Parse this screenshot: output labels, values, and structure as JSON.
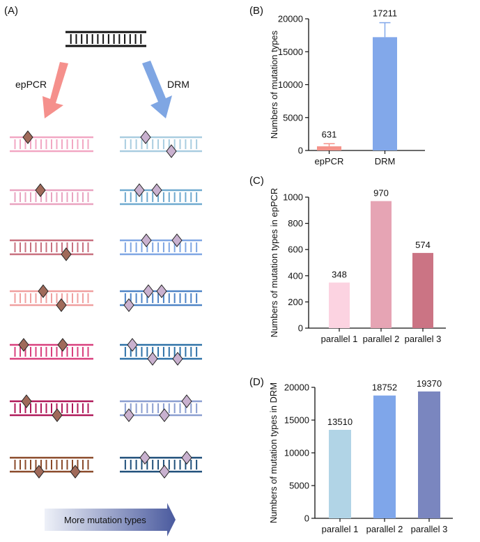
{
  "panels": {
    "a": "(A)",
    "b": "(B)",
    "c": "(C)",
    "d": "(D)"
  },
  "schematic": {
    "left_method": "epPCR",
    "right_method": "DRM",
    "bottom_arrow_text": "More mutation types",
    "colors": {
      "left_arrow": "#f5908c",
      "right_arrow": "#7fa6e3",
      "mutation_marker_left": "#a06a5a",
      "mutation_marker_right": "#c9b1cf",
      "left_dna": [
        "#f2a7c3",
        "#e9a3c0",
        "#c8707f",
        "#f0a0a0",
        "#d9407e",
        "#b01a5a",
        "#8a4a2a"
      ],
      "right_dna": [
        "#a9cde0",
        "#6fa9cf",
        "#7fa6e3",
        "#4f84c6",
        "#2f72a8",
        "#8b9ed0",
        "#1f4f7a"
      ]
    }
  },
  "chart_data": [
    {
      "id": "B",
      "type": "bar",
      "categories": [
        "epPCR",
        "DRM"
      ],
      "values": [
        631,
        17211
      ],
      "data_labels": [
        "631",
        "17211"
      ],
      "error": [
        400,
        2200
      ],
      "colors": [
        "#f4938a",
        "#82a8ea"
      ],
      "title": "",
      "xlabel": "",
      "ylabel": "Numbers of mutation types",
      "ylim": [
        0,
        20000
      ],
      "yticks": [
        0,
        5000,
        10000,
        15000,
        20000
      ]
    },
    {
      "id": "C",
      "type": "bar",
      "categories": [
        "parallel 1",
        "parallel 2",
        "parallel 3"
      ],
      "values": [
        348,
        970,
        574
      ],
      "data_labels": [
        "348",
        "970",
        "574"
      ],
      "colors": [
        "#fcd3e1",
        "#e6a4b4",
        "#cb7484"
      ],
      "title": "",
      "xlabel": "",
      "ylabel": "Numbers of mutation types in epPCR",
      "ylim": [
        0,
        1000
      ],
      "yticks": [
        0,
        200,
        400,
        600,
        800,
        1000
      ]
    },
    {
      "id": "D",
      "type": "bar",
      "categories": [
        "parallel 1",
        "parallel 2",
        "parallel 3"
      ],
      "values": [
        13510,
        18752,
        19370
      ],
      "data_labels": [
        "13510",
        "18752",
        "19370"
      ],
      "colors": [
        "#b1d4e6",
        "#7fa6ea",
        "#7a86bf"
      ],
      "title": "",
      "xlabel": "",
      "ylabel": "Numbers of mutation types in DRM",
      "ylim": [
        0,
        20000
      ],
      "yticks": [
        0,
        5000,
        10000,
        15000,
        20000
      ]
    }
  ]
}
